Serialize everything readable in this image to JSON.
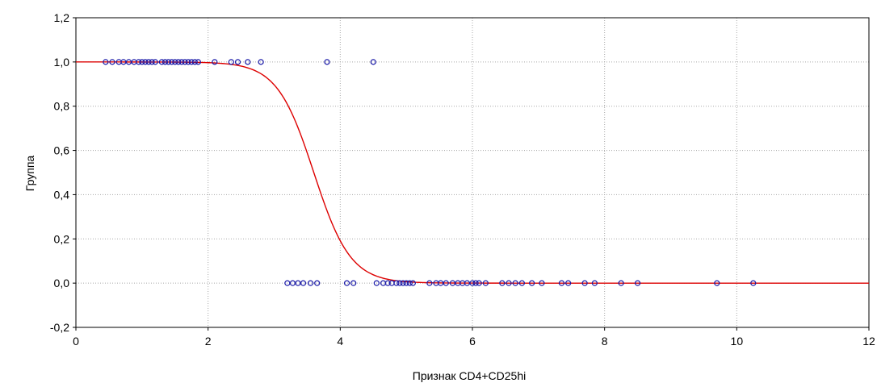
{
  "chart_data": {
    "type": "scatter",
    "xlabel": "Признак CD4+CD25hi",
    "ylabel": "Группа",
    "xlim": [
      0,
      12
    ],
    "ylim": [
      -0.2,
      1.2
    ],
    "x_ticks": [
      0,
      2,
      4,
      6,
      8,
      10,
      12
    ],
    "x_tick_labels": [
      "0",
      "2",
      "4",
      "6",
      "8",
      "10",
      "12"
    ],
    "y_ticks": [
      -0.2,
      0,
      0.2,
      0.4,
      0.6,
      0.8,
      1.0,
      1.2
    ],
    "y_tick_labels": [
      "-0,2",
      "0,0",
      "0,2",
      "0,4",
      "0,6",
      "0,8",
      "1,0",
      "1,2"
    ],
    "grid": true,
    "series": [
      {
        "kind": "points",
        "color": "#1a1aa8",
        "marker": "open-circle",
        "points": [
          {
            "x": 0.45,
            "y": 1
          },
          {
            "x": 0.55,
            "y": 1
          },
          {
            "x": 0.65,
            "y": 1
          },
          {
            "x": 0.72,
            "y": 1
          },
          {
            "x": 0.8,
            "y": 1
          },
          {
            "x": 0.88,
            "y": 1
          },
          {
            "x": 0.95,
            "y": 1
          },
          {
            "x": 1.0,
            "y": 1
          },
          {
            "x": 1.05,
            "y": 1
          },
          {
            "x": 1.1,
            "y": 1
          },
          {
            "x": 1.15,
            "y": 1
          },
          {
            "x": 1.2,
            "y": 1
          },
          {
            "x": 1.3,
            "y": 1
          },
          {
            "x": 1.35,
            "y": 1
          },
          {
            "x": 1.4,
            "y": 1
          },
          {
            "x": 1.45,
            "y": 1
          },
          {
            "x": 1.5,
            "y": 1
          },
          {
            "x": 1.55,
            "y": 1
          },
          {
            "x": 1.6,
            "y": 1
          },
          {
            "x": 1.65,
            "y": 1
          },
          {
            "x": 1.7,
            "y": 1
          },
          {
            "x": 1.75,
            "y": 1
          },
          {
            "x": 1.8,
            "y": 1
          },
          {
            "x": 1.85,
            "y": 1
          },
          {
            "x": 2.1,
            "y": 1
          },
          {
            "x": 2.35,
            "y": 1
          },
          {
            "x": 2.45,
            "y": 1
          },
          {
            "x": 2.6,
            "y": 1
          },
          {
            "x": 2.8,
            "y": 1
          },
          {
            "x": 3.8,
            "y": 1
          },
          {
            "x": 4.5,
            "y": 1
          },
          {
            "x": 3.2,
            "y": 0
          },
          {
            "x": 3.28,
            "y": 0
          },
          {
            "x": 3.36,
            "y": 0
          },
          {
            "x": 3.44,
            "y": 0
          },
          {
            "x": 3.55,
            "y": 0
          },
          {
            "x": 3.65,
            "y": 0
          },
          {
            "x": 4.1,
            "y": 0
          },
          {
            "x": 4.2,
            "y": 0
          },
          {
            "x": 4.55,
            "y": 0
          },
          {
            "x": 4.65,
            "y": 0
          },
          {
            "x": 4.72,
            "y": 0
          },
          {
            "x": 4.78,
            "y": 0
          },
          {
            "x": 4.85,
            "y": 0
          },
          {
            "x": 4.9,
            "y": 0
          },
          {
            "x": 4.95,
            "y": 0
          },
          {
            "x": 5.0,
            "y": 0
          },
          {
            "x": 5.05,
            "y": 0
          },
          {
            "x": 5.1,
            "y": 0
          },
          {
            "x": 5.35,
            "y": 0
          },
          {
            "x": 5.45,
            "y": 0
          },
          {
            "x": 5.52,
            "y": 0
          },
          {
            "x": 5.6,
            "y": 0
          },
          {
            "x": 5.7,
            "y": 0
          },
          {
            "x": 5.78,
            "y": 0
          },
          {
            "x": 5.85,
            "y": 0
          },
          {
            "x": 5.92,
            "y": 0
          },
          {
            "x": 6.0,
            "y": 0
          },
          {
            "x": 6.05,
            "y": 0
          },
          {
            "x": 6.1,
            "y": 0
          },
          {
            "x": 6.2,
            "y": 0
          },
          {
            "x": 6.45,
            "y": 0
          },
          {
            "x": 6.55,
            "y": 0
          },
          {
            "x": 6.65,
            "y": 0
          },
          {
            "x": 6.75,
            "y": 0
          },
          {
            "x": 6.9,
            "y": 0
          },
          {
            "x": 7.05,
            "y": 0
          },
          {
            "x": 7.35,
            "y": 0
          },
          {
            "x": 7.45,
            "y": 0
          },
          {
            "x": 7.7,
            "y": 0
          },
          {
            "x": 7.85,
            "y": 0
          },
          {
            "x": 8.25,
            "y": 0
          },
          {
            "x": 8.5,
            "y": 0
          },
          {
            "x": 9.7,
            "y": 0
          },
          {
            "x": 10.25,
            "y": 0
          }
        ]
      },
      {
        "kind": "logistic-curve",
        "color": "#dd0000",
        "midpoint": 3.6,
        "steepness": 3.6,
        "x_range": [
          0,
          12
        ]
      }
    ]
  }
}
